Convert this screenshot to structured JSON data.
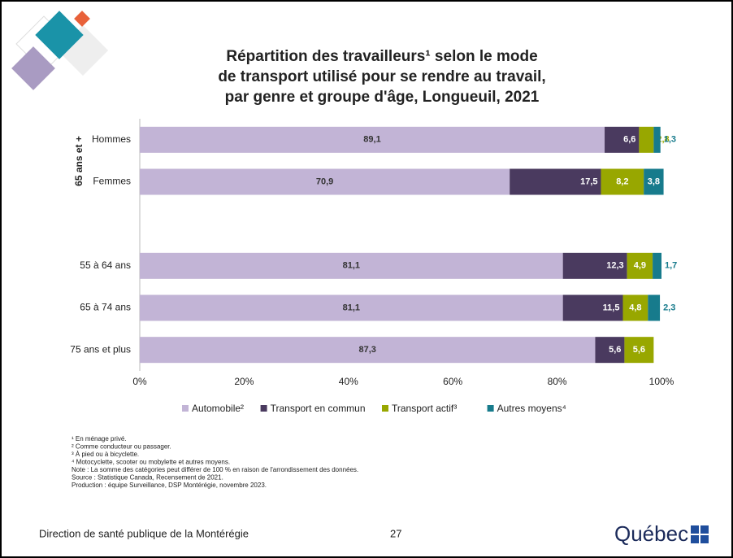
{
  "chart_data": {
    "type": "stacked-barh",
    "title_lines": [
      "Répartition des travailleurs¹ selon le mode",
      "de transport utilisé pour se rendre au travail,",
      "par genre et groupe d'âge, Longueuil, 2021"
    ],
    "group_label": "65 ans et +",
    "categories": [
      "Hommes",
      "Femmes",
      null,
      "55 à 64 ans",
      "65 à 74 ans",
      "75 ans et plus"
    ],
    "series": [
      {
        "name": "Automobile²",
        "color": "#c2b4d6",
        "values": [
          89.1,
          70.9,
          null,
          81.1,
          81.1,
          87.3
        ],
        "value_labels": [
          "89,1",
          "70,9",
          null,
          "81,1",
          "81,1",
          "87,3"
        ]
      },
      {
        "name": "Transport en commun",
        "color": "#4a3a5f",
        "values": [
          6.6,
          17.5,
          null,
          12.3,
          11.5,
          5.6
        ],
        "value_labels": [
          "6,6",
          "17,5",
          null,
          "12,3",
          "11,5",
          "5,6"
        ]
      },
      {
        "name": "Transport actif³",
        "color": "#98a700",
        "values": [
          2.8,
          8.2,
          null,
          4.9,
          4.8,
          5.6
        ],
        "value_labels": [
          "2,8",
          "8,2",
          null,
          "4,9",
          "4,8",
          "5,6"
        ]
      },
      {
        "name": "Autres moyens⁴",
        "color": "#177b8c",
        "values": [
          1.3,
          3.8,
          null,
          1.7,
          2.3,
          null
        ],
        "value_labels": [
          "1,3",
          "3,8",
          null,
          "1,7",
          "2,3",
          null
        ]
      }
    ],
    "xlim": [
      0,
      100
    ],
    "xticks": [
      {
        "value": 0,
        "label": "0%"
      },
      {
        "value": 20,
        "label": "20%"
      },
      {
        "value": 40,
        "label": "40%"
      },
      {
        "value": 60,
        "label": "60%"
      },
      {
        "value": 80,
        "label": "80%"
      },
      {
        "value": 100,
        "label": "100%"
      }
    ]
  },
  "footnotes": [
    "¹ En ménage privé.",
    "² Comme conducteur ou passager.",
    "³ À pied ou à bicyclette.",
    "⁴ Motocyclette, scooter ou mobylette et autres moyens.",
    "Note : La somme des catégories peut différer de 100 % en raison de l'arrondissement des données.",
    "Source : Statistique Canada, Recensement de 2021.",
    "Production : équipe Surveillance, DSP Montérégie, novembre 2023."
  ],
  "footer": {
    "organization": "Direction de santé publique de la Montérégie",
    "page_number": "27",
    "logo_text": "Québec"
  }
}
